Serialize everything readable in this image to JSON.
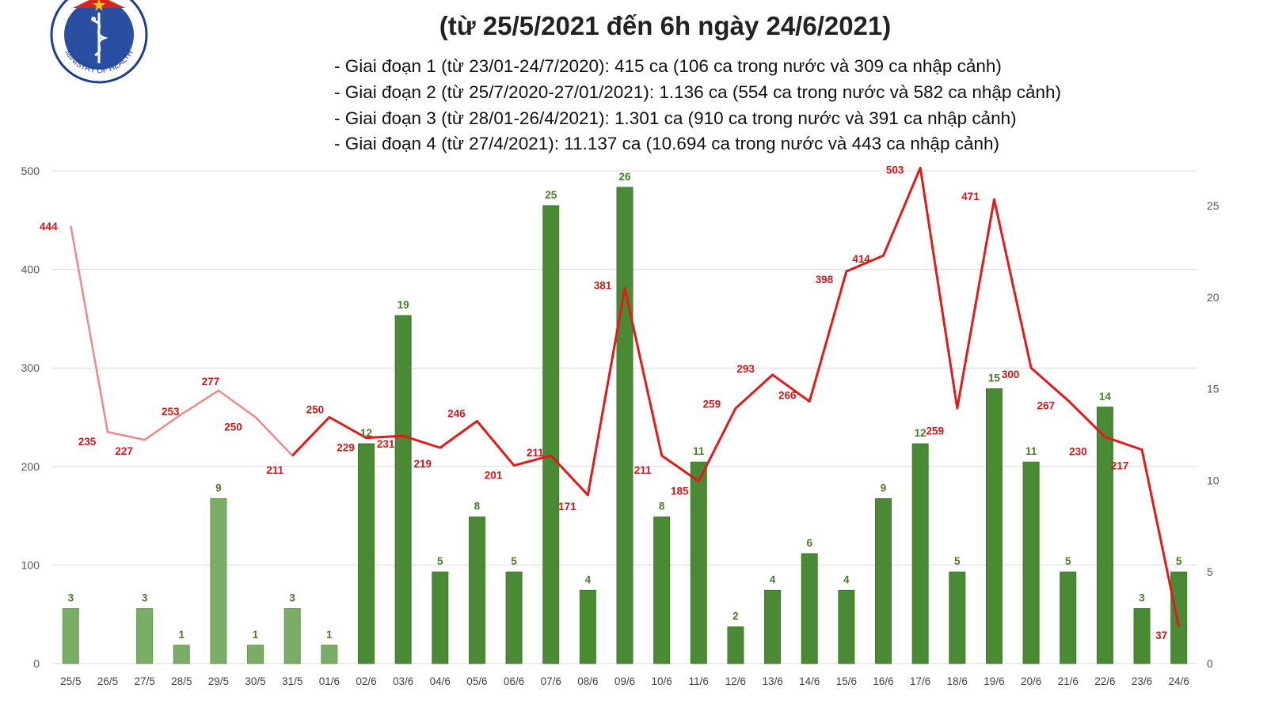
{
  "title": "(từ 25/5/2021 đến 6h ngày 24/6/2021)",
  "stages": [
    "- Giai đoạn 1 (từ 23/01-24/7/2020): 415 ca (106 ca trong nước và 309 ca nhập cảnh)",
    "- Giai đoạn 2 (từ 25/7/2020-27/01/2021): 1.136 ca (554 ca trong nước và 582 ca nhập cảnh)",
    "- Giai đoạn 3 (từ 28/01-26/4/2021): 1.301 ca (910 ca trong nước và 391 ca nhập cảnh)",
    "- Giai đoạn 4 (từ 27/4/2021): 11.137 ca (10.694 ca trong nước và 443 ca nhập cảnh)"
  ],
  "logo": {
    "text": "MINISTRY OF HEALTH",
    "colors": {
      "ring": "#1f3f8a",
      "field": "#2b4fa0",
      "star": "#f0c419",
      "flag": "#d7261e"
    }
  },
  "colors": {
    "bar_pale": "#7aad65",
    "bar": "#4a8a35",
    "line_pale": "#ec8a8a",
    "line": "#e01b1b",
    "grid": "#d9d9d9"
  },
  "chart_data": {
    "type": "bar+line",
    "categories": [
      "25/5",
      "26/5",
      "27/5",
      "28/5",
      "29/5",
      "30/5",
      "31/5",
      "01/6",
      "02/6",
      "03/6",
      "04/6",
      "05/6",
      "06/6",
      "07/6",
      "08/6",
      "09/6",
      "10/6",
      "11/6",
      "12/6",
      "13/6",
      "14/6",
      "15/6",
      "16/6",
      "17/6",
      "18/6",
      "19/6",
      "20/6",
      "21/6",
      "22/6",
      "23/6",
      "24/6"
    ],
    "series": [
      {
        "type": "bar",
        "axis": "right",
        "values": [
          3,
          null,
          3,
          1,
          9,
          1,
          3,
          1,
          12,
          19,
          5,
          8,
          5,
          25,
          4,
          26,
          8,
          11,
          2,
          4,
          6,
          4,
          9,
          12,
          5,
          15,
          11,
          5,
          14,
          3,
          5
        ]
      },
      {
        "type": "line",
        "axis": "left",
        "values": [
          444,
          235,
          227,
          253,
          277,
          250,
          211,
          250,
          229,
          231,
          219,
          246,
          201,
          211,
          171,
          381,
          211,
          185,
          259,
          293,
          266,
          398,
          414,
          503,
          259,
          471,
          300,
          267,
          230,
          217,
          37
        ]
      }
    ],
    "left_axis": {
      "ylim": [
        0,
        500
      ],
      "ticks": [
        0,
        100,
        200,
        300,
        400,
        500
      ]
    },
    "right_axis": {
      "ylim": [
        0,
        26.9
      ],
      "ticks": [
        0,
        5,
        10,
        15,
        20,
        25
      ]
    },
    "grid": true,
    "legend": "none"
  }
}
